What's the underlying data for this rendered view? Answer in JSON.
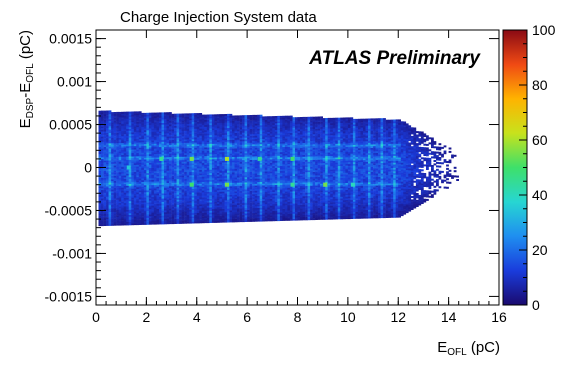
{
  "chart_data": {
    "type": "heatmap",
    "title": "Charge Injection System data",
    "annotation": "ATLAS Preliminary",
    "xlabel": {
      "main": "E",
      "sub": "OFL",
      "unit": " (pC)"
    },
    "ylabel": {
      "main1": "E",
      "sub1": "DSP",
      "mid": "-E",
      "sub2": "OFL",
      "unit": " (pC)"
    },
    "xlim": [
      0,
      16
    ],
    "ylim": [
      -0.0016,
      0.0016
    ],
    "x_ticks": [
      0,
      2,
      4,
      6,
      8,
      10,
      12,
      14,
      16
    ],
    "x_tick_labels": [
      "0",
      "2",
      "4",
      "6",
      "8",
      "10",
      "12",
      "14",
      "16"
    ],
    "y_ticks": [
      -0.0015,
      -0.001,
      -0.0005,
      0,
      0.0005,
      0.001,
      0.0015
    ],
    "y_tick_labels": [
      "-0.0015",
      "-0.001",
      "-0.0005",
      "0",
      "0.0005",
      "0.001",
      "0.0015"
    ],
    "colorbar": {
      "range": [
        0,
        100
      ],
      "ticks": [
        0,
        20,
        40,
        60,
        80,
        100
      ],
      "tick_labels": [
        "0",
        "20",
        "40",
        "60",
        "80",
        "100"
      ],
      "colors": [
        "#1a0a6e",
        "#1a3cdc",
        "#1f8ef0",
        "#27d6d2",
        "#3ee06a",
        "#c8e21c",
        "#ffb300",
        "#f04a14",
        "#8a0a14"
      ]
    },
    "band": {
      "y_top_start": 0.00065,
      "y_top_end": 0.00055,
      "y_bottom_start": -0.00068,
      "y_bottom_end": -0.00058,
      "x_dense_end": 12,
      "x_sparse_end": 14.3
    },
    "vertical_stripes_x": [
      0.5,
      1.3,
      2.0,
      2.6,
      3.2,
      3.8,
      4.5,
      5.2,
      5.9,
      6.5,
      7.2,
      7.8,
      8.4,
      9.1,
      9.6,
      10.2,
      10.8,
      11.3,
      11.8
    ],
    "hot_rows_y": [
      0.00025,
      0.0001,
      -0.0002
    ],
    "hot_spots": [
      {
        "x": 1.3,
        "y": 0.0,
        "z": 35
      },
      {
        "x": 2.6,
        "y": 0.0001,
        "z": 45
      },
      {
        "x": 3.8,
        "y": 0.0001,
        "z": 55
      },
      {
        "x": 3.8,
        "y": -0.0002,
        "z": 50
      },
      {
        "x": 5.2,
        "y": 0.0001,
        "z": 60
      },
      {
        "x": 5.2,
        "y": -0.0002,
        "z": 55
      },
      {
        "x": 6.5,
        "y": 0.0001,
        "z": 45
      },
      {
        "x": 7.8,
        "y": 0.0001,
        "z": 50
      },
      {
        "x": 7.8,
        "y": -0.0002,
        "z": 45
      },
      {
        "x": 9.1,
        "y": -0.0002,
        "z": 55
      },
      {
        "x": 10.2,
        "y": -0.0002,
        "z": 40
      }
    ]
  }
}
